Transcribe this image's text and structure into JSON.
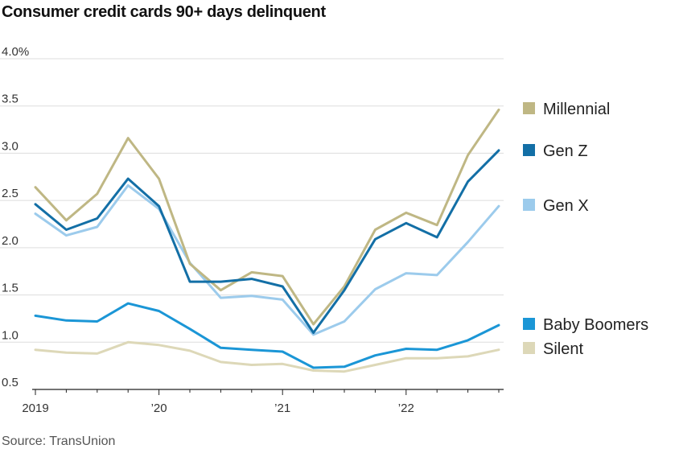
{
  "chart_data": {
    "type": "line",
    "title": "Consumer credit cards 90+ days delinquent",
    "source": "Source: TransUnion",
    "ylim": [
      0.5,
      4.0
    ],
    "y_ticks": [
      {
        "value": 4.0,
        "label": "4.0%"
      },
      {
        "value": 3.5,
        "label": "3.5"
      },
      {
        "value": 3.0,
        "label": "3.0"
      },
      {
        "value": 2.5,
        "label": "2.5"
      },
      {
        "value": 2.0,
        "label": "2.0"
      },
      {
        "value": 1.5,
        "label": "1.5"
      },
      {
        "value": 1.0,
        "label": "1.0"
      },
      {
        "value": 0.5,
        "label": "0.5"
      }
    ],
    "x_tick_labels": [
      {
        "index": 0,
        "label": "2019"
      },
      {
        "index": 4,
        "label": "’20"
      },
      {
        "index": 8,
        "label": "’21"
      },
      {
        "index": 12,
        "label": "’22"
      }
    ],
    "x": [
      "Q1 2019",
      "Q2 2019",
      "Q3 2019",
      "Q4 2019",
      "Q1 2020",
      "Q2 2020",
      "Q3 2020",
      "Q4 2020",
      "Q1 2021",
      "Q2 2021",
      "Q3 2021",
      "Q4 2021",
      "Q1 2022",
      "Q2 2022",
      "Q3 2022",
      "Q4 2022"
    ],
    "series": [
      {
        "name": "Silent",
        "color": "#ddd8b8",
        "values": [
          0.92,
          0.89,
          0.88,
          1.0,
          0.97,
          0.91,
          0.79,
          0.76,
          0.77,
          0.7,
          0.69,
          0.76,
          0.83,
          0.83,
          0.85,
          0.92
        ]
      },
      {
        "name": "Baby Boomers",
        "color": "#1b96d6",
        "values": [
          1.28,
          1.23,
          1.22,
          1.41,
          1.33,
          1.14,
          0.94,
          0.92,
          0.9,
          0.73,
          0.74,
          0.86,
          0.93,
          0.92,
          1.02,
          1.18
        ]
      },
      {
        "name": "Gen X",
        "color": "#9ccbec",
        "values": [
          2.36,
          2.13,
          2.22,
          2.66,
          2.41,
          1.84,
          1.47,
          1.49,
          1.45,
          1.08,
          1.22,
          1.56,
          1.73,
          1.71,
          2.06,
          2.44
        ]
      },
      {
        "name": "Millennial",
        "color": "#bfb784",
        "values": [
          2.64,
          2.29,
          2.57,
          3.16,
          2.73,
          1.83,
          1.55,
          1.74,
          1.7,
          1.19,
          1.59,
          2.19,
          2.37,
          2.24,
          2.98,
          3.46
        ]
      },
      {
        "name": "Gen Z",
        "color": "#136fa6",
        "values": [
          2.46,
          2.19,
          2.31,
          2.73,
          2.44,
          1.64,
          1.64,
          1.67,
          1.59,
          1.1,
          1.55,
          2.09,
          2.26,
          2.11,
          2.7,
          3.03
        ]
      }
    ],
    "legend": [
      {
        "name": "Millennial",
        "color": "#bfb784"
      },
      {
        "name": "Gen Z",
        "color": "#136fa6"
      },
      {
        "name": "Gen X",
        "color": "#9ccbec"
      },
      {
        "name": "Baby Boomers",
        "color": "#1b96d6"
      },
      {
        "name": "Silent",
        "color": "#ddd8b8"
      }
    ],
    "legend_placement": "right",
    "grid": true,
    "gridline_color": "#dddddd"
  }
}
